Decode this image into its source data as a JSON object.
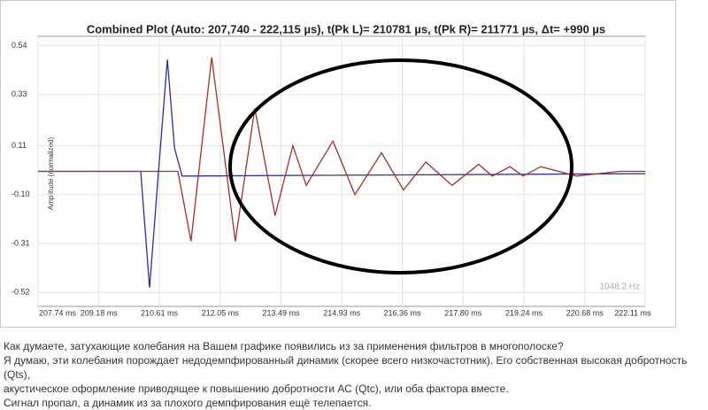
{
  "chart_data": {
    "type": "line",
    "title": "Combined Plot (Auto: 207,740 - 222,115 µs), t(Pk L)= 210781 µs, t(Pk R)= 211771 µs, Δt= +990 µs",
    "y_label": "Amplitude (normalized)",
    "annotation": "1048.2 Hz",
    "xlim": [
      207.74,
      222.11
    ],
    "xticks": [
      {
        "value": 207.74,
        "label": "207.74 ms"
      },
      {
        "value": 209.18,
        "label": "209.18 ms"
      },
      {
        "value": 210.61,
        "label": "210.61 ms"
      },
      {
        "value": 212.05,
        "label": "212.05 ms"
      },
      {
        "value": 213.49,
        "label": "213.49 ms"
      },
      {
        "value": 214.93,
        "label": "214.93 ms"
      },
      {
        "value": 216.36,
        "label": "216.36 ms"
      },
      {
        "value": 217.8,
        "label": "217.80 ms"
      },
      {
        "value": 219.24,
        "label": "219.24 ms"
      },
      {
        "value": 220.68,
        "label": "220.68 ms"
      },
      {
        "value": 222.11,
        "label": "222.11 ms"
      }
    ],
    "ylim": [
      -0.58,
      0.58
    ],
    "yticks": [
      0.54,
      0.33,
      0.11,
      {
        "value": -0.1,
        "label": "-0.10"
      },
      -0.31,
      -0.52
    ],
    "grid": true,
    "series": [
      {
        "color": "#2b2f9a",
        "x": [
          207.74,
          210.17,
          210.38,
          210.59,
          210.8,
          210.97,
          211.15,
          222.11
        ],
        "values": [
          0,
          0,
          -0.5,
          0,
          0.48,
          0.1,
          -0.02,
          -0.01
        ]
      },
      {
        "color": "#a0302a",
        "x": [
          207.74,
          211.05,
          211.36,
          211.85,
          212.41,
          212.87,
          213.35,
          213.77,
          214.09,
          214.72,
          215.24,
          215.87,
          216.39,
          216.92,
          217.54,
          218.17,
          218.49,
          218.91,
          219.22,
          219.64,
          220.48,
          221.52,
          222.11
        ],
        "values": [
          0,
          0,
          -0.3,
          0.49,
          -0.3,
          0.27,
          -0.19,
          0.11,
          -0.06,
          0.13,
          -0.1,
          0.08,
          -0.08,
          0.04,
          -0.06,
          0.03,
          -0.02,
          0.02,
          -0.02,
          0.02,
          -0.02,
          0,
          0
        ]
      }
    ]
  },
  "post": {
    "lines": [
      "Как думаете, затухающие колебания на Вашем графике появились из за применения фильтров в многополоске?",
      "Я думаю, эти колебания порождает недодемпфированный динамик (скорее всего низкочастотник). Его собственная высокая добротность (Qts),",
      "акустическое оформление приводящее к повышению добротности АС (Qtc), или оба фактора вместе.",
      "Сигнал пропал, а динамик из за плохого демпфирования ещё телепается."
    ]
  }
}
